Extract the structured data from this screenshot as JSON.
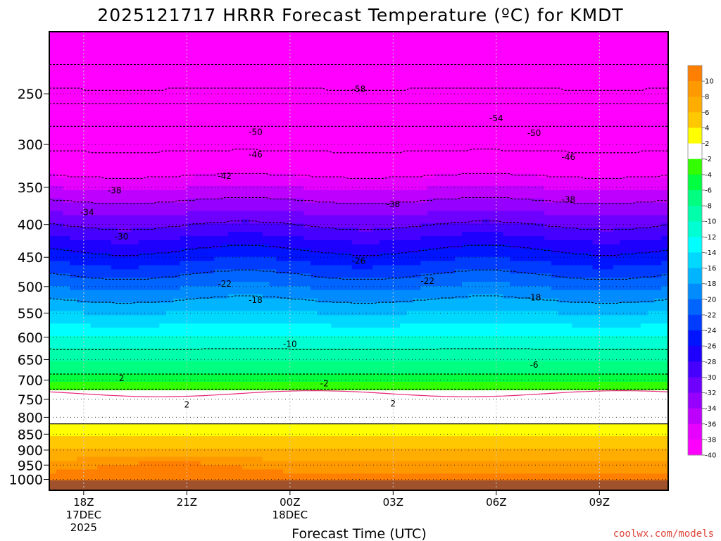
{
  "chart_data": {
    "type": "heatmap",
    "title": "2025121717 HRRR Forecast Temperature (ºC) for KMDT",
    "xlabel": "Forecast Time (UTC)",
    "ylabel": "",
    "credit": "coolwx.com/models",
    "x_ticks": [
      {
        "label": "18Z",
        "date": "17DEC",
        "year": "2025",
        "hour": 18
      },
      {
        "label": "21Z",
        "date": "",
        "year": "",
        "hour": 21
      },
      {
        "label": "00Z",
        "date": "18DEC",
        "year": "",
        "hour": 24
      },
      {
        "label": "03Z",
        "date": "",
        "year": "",
        "hour": 27
      },
      {
        "label": "06Z",
        "date": "",
        "year": "",
        "hour": 30
      },
      {
        "label": "09Z",
        "date": "",
        "year": "",
        "hour": 33
      }
    ],
    "x_range_hours": [
      17,
      35
    ],
    "y_scale": "log-pressure",
    "y_range_hpa": [
      1040,
      200
    ],
    "y_ticks": [
      250,
      300,
      350,
      400,
      450,
      500,
      550,
      600,
      650,
      700,
      750,
      800,
      850,
      900,
      950,
      1000
    ],
    "grid": true,
    "colorbar": {
      "ticks": [
        10,
        8,
        6,
        4,
        2,
        -2,
        -4,
        -6,
        -8,
        -10,
        -12,
        -14,
        -16,
        -18,
        -20,
        -22,
        -24,
        -26,
        -28,
        -30,
        -32,
        -34,
        -36,
        -38,
        -40
      ],
      "bins": [
        {
          "low": 10,
          "high": 12,
          "color": "#ff7f00"
        },
        {
          "low": 8,
          "high": 10,
          "color": "#ff9900"
        },
        {
          "low": 6,
          "high": 8,
          "color": "#ffad00"
        },
        {
          "low": 4,
          "high": 6,
          "color": "#ffc800"
        },
        {
          "low": 2,
          "high": 4,
          "color": "#ffff00"
        },
        {
          "low": -2,
          "high": 2,
          "color": "#ffffff"
        },
        {
          "low": -4,
          "high": -2,
          "color": "#33ff00"
        },
        {
          "low": -6,
          "high": -4,
          "color": "#00ff40"
        },
        {
          "low": -8,
          "high": -6,
          "color": "#00ff80"
        },
        {
          "low": -10,
          "high": -8,
          "color": "#00ffaa"
        },
        {
          "low": -12,
          "high": -10,
          "color": "#00ffd2"
        },
        {
          "low": -14,
          "high": -12,
          "color": "#00ffff"
        },
        {
          "low": -16,
          "high": -14,
          "color": "#00d8ff"
        },
        {
          "low": -18,
          "high": -16,
          "color": "#00b4ff"
        },
        {
          "low": -20,
          "high": -18,
          "color": "#008cff"
        },
        {
          "low": -22,
          "high": -20,
          "color": "#0064ff"
        },
        {
          "low": -24,
          "high": -22,
          "color": "#003cff"
        },
        {
          "low": -26,
          "high": -24,
          "color": "#0014ff"
        },
        {
          "low": -28,
          "high": -26,
          "color": "#1e00ff"
        },
        {
          "low": -30,
          "high": -28,
          "color": "#4600ff"
        },
        {
          "low": -32,
          "high": -30,
          "color": "#6e00ff"
        },
        {
          "low": -34,
          "high": -32,
          "color": "#9600ff"
        },
        {
          "low": -36,
          "high": -34,
          "color": "#be00ff"
        },
        {
          "low": -38,
          "high": -36,
          "color": "#e600ff"
        },
        {
          "low": -40,
          "high": -38,
          "color": "#ff00ff"
        },
        {
          "low": -60,
          "high": -40,
          "color": "#ff00ff"
        }
      ]
    },
    "contour_levels": [
      2,
      -2,
      -6,
      -10,
      -18,
      -22,
      -26,
      -30,
      -34,
      -38,
      -42,
      -46,
      -50,
      -54,
      -58
    ],
    "contour_labels": [
      {
        "text": "2",
        "hour": 19.1,
        "p": 695
      },
      {
        "text": "2",
        "hour": 21.0,
        "p": 765
      },
      {
        "text": "2",
        "hour": 27.0,
        "p": 762
      },
      {
        "text": "-2",
        "hour": 25.0,
        "p": 709
      },
      {
        "text": "-6",
        "hour": 31.1,
        "p": 663
      },
      {
        "text": "-10",
        "hour": 24.0,
        "p": 615
      },
      {
        "text": "-18",
        "hour": 23.0,
        "p": 525
      },
      {
        "text": "-18",
        "hour": 31.1,
        "p": 520
      },
      {
        "text": "-22",
        "hour": 22.1,
        "p": 495
      },
      {
        "text": "-22",
        "hour": 28.0,
        "p": 490
      },
      {
        "text": "-26",
        "hour": 26.0,
        "p": 456
      },
      {
        "text": "-30",
        "hour": 19.1,
        "p": 418
      },
      {
        "text": "-34",
        "hour": 18.1,
        "p": 383
      },
      {
        "text": "-38",
        "hour": 18.9,
        "p": 354
      },
      {
        "text": "-38",
        "hour": 27.0,
        "p": 372
      },
      {
        "text": "-38",
        "hour": 32.1,
        "p": 366
      },
      {
        "text": "-42",
        "hour": 22.1,
        "p": 336
      },
      {
        "text": "-46",
        "hour": 23.0,
        "p": 311
      },
      {
        "text": "-46",
        "hour": 32.1,
        "p": 314
      },
      {
        "text": "-50",
        "hour": 23.0,
        "p": 287
      },
      {
        "text": "-50",
        "hour": 31.1,
        "p": 288
      },
      {
        "text": "-54",
        "hour": 30.0,
        "p": 273
      },
      {
        "text": "-58",
        "hour": 26.0,
        "p": 246
      }
    ],
    "terrain_color": "#a0522d"
  }
}
